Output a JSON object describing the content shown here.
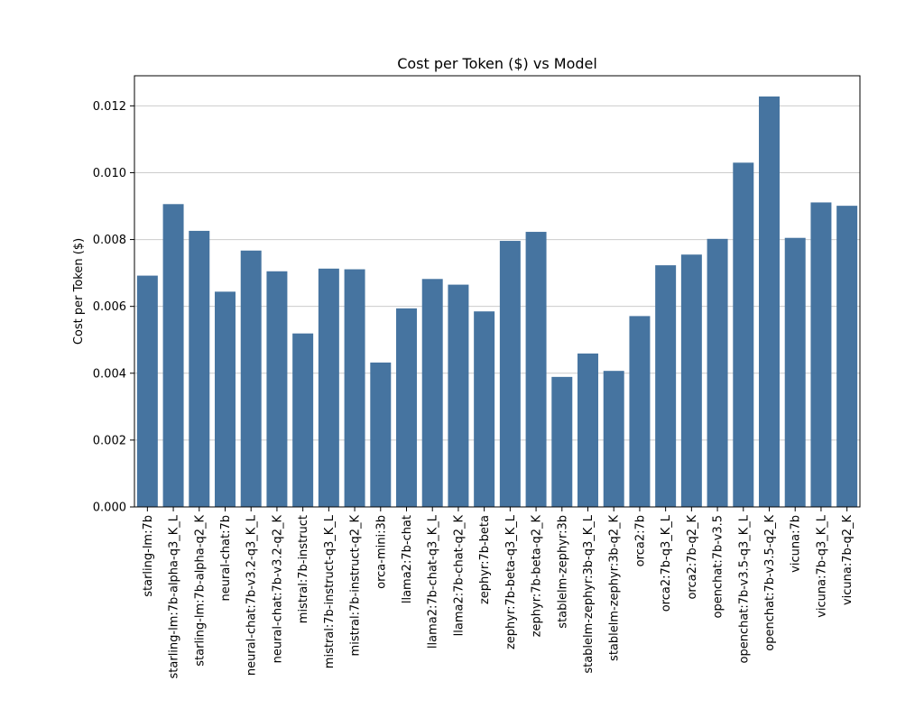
{
  "chart_data": {
    "type": "bar",
    "title": "Cost per Token ($) vs Model",
    "xlabel": "",
    "ylabel": "Cost per Token ($)",
    "ylim": [
      0,
      0.0129
    ],
    "yticks": [
      0.0,
      0.002,
      0.004,
      0.006,
      0.008,
      0.01,
      0.012
    ],
    "ytick_labels": [
      "0.000",
      "0.002",
      "0.004",
      "0.006",
      "0.008",
      "0.010",
      "0.012"
    ],
    "grid": "y",
    "bar_color": "#4674a0",
    "categories": [
      "starling-lm:7b",
      "starling-lm:7b-alpha-q3_K_L",
      "starling-lm:7b-alpha-q2_K",
      "neural-chat:7b",
      "neural-chat:7b-v3.2-q3_K_L",
      "neural-chat:7b-v3.2-q2_K",
      "mistral:7b-instruct",
      "mistral:7b-instruct-q3_K_L",
      "mistral:7b-instruct-q2_K",
      "orca-mini:3b",
      "llama2:7b-chat",
      "llama2:7b-chat-q3_K_L",
      "llama2:7b-chat-q2_K",
      "zephyr:7b-beta",
      "zephyr:7b-beta-q3_K_L",
      "zephyr:7b-beta-q2_K",
      "stablelm-zephyr:3b",
      "stablelm-zephyr:3b-q3_K_L",
      "stablelm-zephyr:3b-q2_K",
      "orca2:7b",
      "orca2:7b-q3_K_L",
      "orca2:7b-q2_K",
      "openchat:7b-v3.5",
      "openchat:7b-v3.5-q3_K_L",
      "openchat:7b-v3.5-q2_K",
      "vicuna:7b",
      "vicuna:7b-q3_K_L",
      "vicuna:7b-q2_K"
    ],
    "values": [
      0.00692,
      0.00906,
      0.00826,
      0.00644,
      0.00767,
      0.00705,
      0.00519,
      0.00713,
      0.00711,
      0.00432,
      0.00594,
      0.00682,
      0.00665,
      0.00585,
      0.00796,
      0.00823,
      0.00389,
      0.00459,
      0.00407,
      0.00571,
      0.00723,
      0.00755,
      0.00802,
      0.0103,
      0.01228,
      0.00805,
      0.00911,
      0.00901
    ]
  }
}
